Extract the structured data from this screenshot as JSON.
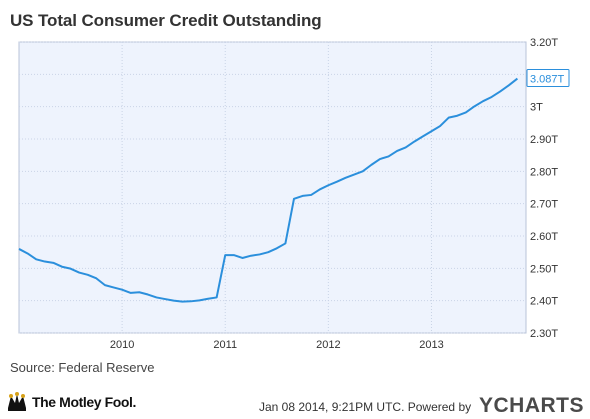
{
  "header": {
    "title": "US Total Consumer Credit Outstanding"
  },
  "footer": {
    "source": "Source: Federal Reserve",
    "timestamp": "Jan 08 2014, 9:21PM UTC.  Powered by",
    "brand_left": "The Motley Fool.",
    "brand_right": "YCHARTS"
  },
  "colors": {
    "line": "#2b8fdc",
    "plot_bg": "#eef3fd",
    "grid": "#c9d3e6",
    "label_bg": "#ffffff"
  },
  "chart_data": {
    "type": "line",
    "title": "US Total Consumer Credit Outstanding",
    "xlabel": "",
    "ylabel": "",
    "y_axis_side": "right",
    "xlim": [
      "2009-01",
      "2013-12"
    ],
    "ylim": [
      2.3,
      3.2
    ],
    "y_ticks": [
      {
        "value": 3.2,
        "label": "3.20T"
      },
      {
        "value": 3.1,
        "label": "3.10T"
      },
      {
        "value": 3.0,
        "label": "3T"
      },
      {
        "value": 2.9,
        "label": "2.90T"
      },
      {
        "value": 2.8,
        "label": "2.80T"
      },
      {
        "value": 2.7,
        "label": "2.70T"
      },
      {
        "value": 2.6,
        "label": "2.60T"
      },
      {
        "value": 2.5,
        "label": "2.50T"
      },
      {
        "value": 2.4,
        "label": "2.40T"
      },
      {
        "value": 2.3,
        "label": "2.30T"
      }
    ],
    "x_ticks": [
      {
        "value": "2010-01",
        "label": "2010"
      },
      {
        "value": "2011-01",
        "label": "2011"
      },
      {
        "value": "2012-01",
        "label": "2012"
      },
      {
        "value": "2013-01",
        "label": "2013"
      }
    ],
    "grid": true,
    "series": [
      {
        "name": "",
        "x": [
          "2009-01",
          "2009-02",
          "2009-03",
          "2009-04",
          "2009-05",
          "2009-06",
          "2009-07",
          "2009-08",
          "2009-09",
          "2009-10",
          "2009-11",
          "2009-12",
          "2010-01",
          "2010-02",
          "2010-03",
          "2010-04",
          "2010-05",
          "2010-06",
          "2010-07",
          "2010-08",
          "2010-09",
          "2010-10",
          "2010-11",
          "2010-12",
          "2011-01",
          "2011-02",
          "2011-03",
          "2011-04",
          "2011-05",
          "2011-06",
          "2011-07",
          "2011-08",
          "2011-09",
          "2011-10",
          "2011-11",
          "2011-12",
          "2012-01",
          "2012-02",
          "2012-03",
          "2012-04",
          "2012-05",
          "2012-06",
          "2012-07",
          "2012-08",
          "2012-09",
          "2012-10",
          "2012-11",
          "2012-12",
          "2013-01",
          "2013-02",
          "2013-03",
          "2013-04",
          "2013-05",
          "2013-06",
          "2013-07",
          "2013-08",
          "2013-09",
          "2013-10",
          "2013-11"
        ],
        "y": [
          2.56,
          2.546,
          2.528,
          2.521,
          2.517,
          2.505,
          2.499,
          2.487,
          2.48,
          2.469,
          2.448,
          2.441,
          2.434,
          2.424,
          2.426,
          2.419,
          2.41,
          2.405,
          2.4,
          2.397,
          2.398,
          2.401,
          2.406,
          2.41,
          2.541,
          2.541,
          2.532,
          2.539,
          2.543,
          2.55,
          2.562,
          2.577,
          2.715,
          2.724,
          2.727,
          2.744,
          2.757,
          2.768,
          2.78,
          2.79,
          2.8,
          2.82,
          2.838,
          2.846,
          2.863,
          2.874,
          2.892,
          2.908,
          2.924,
          2.94,
          2.966,
          2.972,
          2.982,
          3.001,
          3.017,
          3.03,
          3.047,
          3.066,
          3.087
        ]
      }
    ],
    "last_value_label": "3.087T"
  }
}
